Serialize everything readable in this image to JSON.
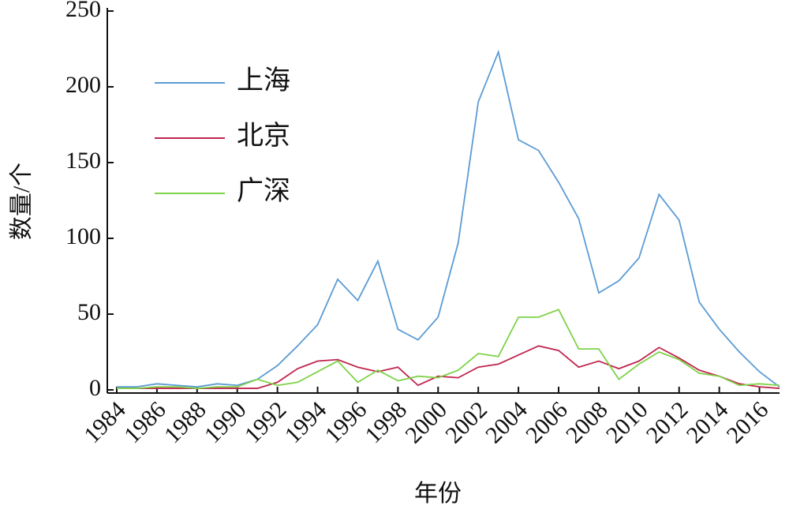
{
  "chart_data": {
    "type": "line",
    "xlabel": "年份",
    "ylabel": "数量/个",
    "x": [
      1984,
      1985,
      1986,
      1987,
      1988,
      1989,
      1990,
      1991,
      1992,
      1993,
      1994,
      1995,
      1996,
      1997,
      1998,
      1999,
      2000,
      2001,
      2002,
      2003,
      2004,
      2005,
      2006,
      2007,
      2008,
      2009,
      2010,
      2011,
      2012,
      2013,
      2014,
      2015,
      2016,
      2017
    ],
    "series": [
      {
        "name": "上海",
        "color": "#5b9bd5",
        "values": [
          2,
          2,
          4,
          3,
          2,
          4,
          3,
          7,
          16,
          29,
          43,
          73,
          59,
          85,
          40,
          33,
          48,
          97,
          190,
          223,
          165,
          158,
          137,
          113,
          64,
          72,
          87,
          129,
          112,
          58,
          40,
          25,
          12,
          2
        ]
      },
      {
        "name": "北京",
        "color": "#c0264e",
        "values": [
          1,
          1,
          1,
          1,
          1,
          1,
          1,
          1,
          5,
          14,
          19,
          20,
          15,
          12,
          15,
          3,
          9,
          8,
          15,
          17,
          23,
          29,
          26,
          15,
          19,
          14,
          19,
          28,
          21,
          13,
          9,
          4,
          2,
          1
        ]
      },
      {
        "name": "广深",
        "color": "#7ed348",
        "values": [
          1,
          1,
          2,
          2,
          1,
          2,
          2,
          7,
          3,
          5,
          12,
          19,
          5,
          13,
          6,
          9,
          8,
          13,
          24,
          22,
          48,
          48,
          53,
          27,
          27,
          7,
          17,
          25,
          20,
          11,
          9,
          3,
          4,
          3
        ]
      }
    ],
    "xlim": [
      1984,
      2017
    ],
    "xticks": [
      1984,
      1986,
      1988,
      1990,
      1992,
      1994,
      1996,
      1998,
      2000,
      2002,
      2004,
      2006,
      2008,
      2010,
      2012,
      2014,
      2016
    ],
    "ylim": [
      0,
      250
    ],
    "yticks": [
      0,
      50,
      100,
      150,
      200,
      250
    ],
    "grid": false
  }
}
